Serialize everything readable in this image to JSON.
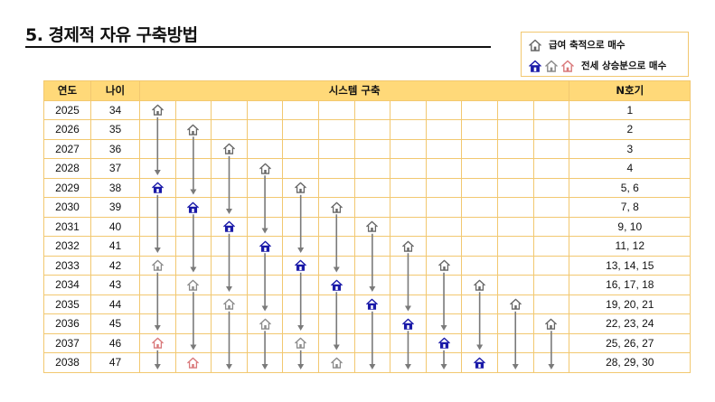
{
  "title": "5. 경제적 자유 구축방법",
  "legend": {
    "item1": "급여 축적으로 매수",
    "item2": "전세 상승분으로 매수"
  },
  "colors": {
    "header_bg": "#ffd979",
    "border": "#f2c870",
    "house_gray": "#8a8a8a",
    "house_blue": "#1a1aa8",
    "house_red": "#d9787a",
    "arrow": "#7a7a7a"
  },
  "table": {
    "headers": {
      "year": "연도",
      "age": "나이",
      "system": "시스템 구축",
      "n": "N호기"
    },
    "rows": [
      {
        "year": "2025",
        "age": "34",
        "n": "1"
      },
      {
        "year": "2026",
        "age": "35",
        "n": "2"
      },
      {
        "year": "2027",
        "age": "36",
        "n": "3"
      },
      {
        "year": "2028",
        "age": "37",
        "n": "4"
      },
      {
        "year": "2029",
        "age": "38",
        "n": "5, 6"
      },
      {
        "year": "2030",
        "age": "39",
        "n": "7, 8"
      },
      {
        "year": "2031",
        "age": "40",
        "n": "9, 10"
      },
      {
        "year": "2032",
        "age": "41",
        "n": "11, 12"
      },
      {
        "year": "2033",
        "age": "42",
        "n": "13, 14, 15"
      },
      {
        "year": "2034",
        "age": "43",
        "n": "16, 17, 18"
      },
      {
        "year": "2035",
        "age": "44",
        "n": "19, 20, 21"
      },
      {
        "year": "2036",
        "age": "45",
        "n": "22, 23, 24"
      },
      {
        "year": "2037",
        "age": "46",
        "n": "25, 26, 27"
      },
      {
        "year": "2038",
        "age": "47",
        "n": "28, 29, 30"
      }
    ],
    "houses": [
      {
        "row": 0,
        "col": 0,
        "icon": "outline-house-icon"
      },
      {
        "row": 1,
        "col": 1,
        "icon": "outline-house-icon"
      },
      {
        "row": 2,
        "col": 2,
        "icon": "outline-house-icon"
      },
      {
        "row": 3,
        "col": 3,
        "icon": "outline-house-icon"
      },
      {
        "row": 4,
        "col": 0,
        "icon": "blue-house-icon"
      },
      {
        "row": 4,
        "col": 4,
        "icon": "outline-house-icon"
      },
      {
        "row": 5,
        "col": 1,
        "icon": "blue-house-icon"
      },
      {
        "row": 5,
        "col": 5,
        "icon": "outline-house-icon"
      },
      {
        "row": 6,
        "col": 2,
        "icon": "blue-house-icon"
      },
      {
        "row": 6,
        "col": 6,
        "icon": "outline-house-icon"
      },
      {
        "row": 7,
        "col": 3,
        "icon": "blue-house-icon"
      },
      {
        "row": 7,
        "col": 7,
        "icon": "outline-house-icon"
      },
      {
        "row": 8,
        "col": 0,
        "icon": "gray-house-icon"
      },
      {
        "row": 8,
        "col": 4,
        "icon": "blue-house-icon"
      },
      {
        "row": 8,
        "col": 8,
        "icon": "outline-house-icon"
      },
      {
        "row": 9,
        "col": 1,
        "icon": "gray-house-icon"
      },
      {
        "row": 9,
        "col": 5,
        "icon": "blue-house-icon"
      },
      {
        "row": 9,
        "col": 9,
        "icon": "outline-house-icon"
      },
      {
        "row": 10,
        "col": 2,
        "icon": "gray-house-icon"
      },
      {
        "row": 10,
        "col": 6,
        "icon": "blue-house-icon"
      },
      {
        "row": 10,
        "col": 10,
        "icon": "outline-house-icon"
      },
      {
        "row": 11,
        "col": 3,
        "icon": "gray-house-icon"
      },
      {
        "row": 11,
        "col": 7,
        "icon": "blue-house-icon"
      },
      {
        "row": 11,
        "col": 11,
        "icon": "outline-house-icon"
      },
      {
        "row": 12,
        "col": 0,
        "icon": "red-house-icon"
      },
      {
        "row": 12,
        "col": 4,
        "icon": "gray-house-icon"
      },
      {
        "row": 12,
        "col": 8,
        "icon": "blue-house-icon"
      },
      {
        "row": 13,
        "col": 1,
        "icon": "red-house-icon"
      },
      {
        "row": 13,
        "col": 5,
        "icon": "gray-house-icon"
      },
      {
        "row": 13,
        "col": 9,
        "icon": "blue-house-icon"
      }
    ]
  }
}
